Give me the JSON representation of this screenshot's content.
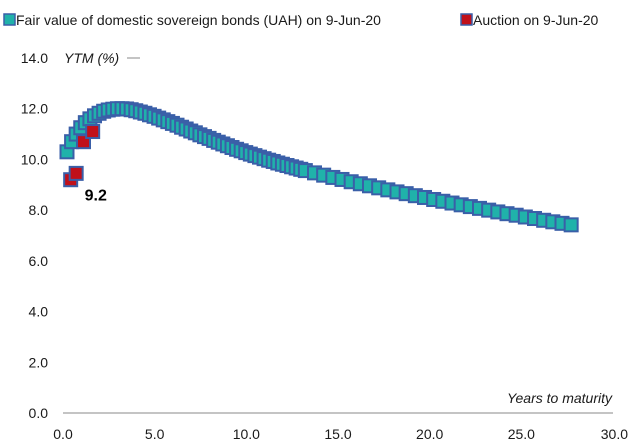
{
  "chart_data": {
    "type": "scatter",
    "title": "",
    "xlabel": "Years to maturity",
    "ylabel": "YTM (%)",
    "xlim": [
      0,
      30
    ],
    "ylim": [
      0,
      14
    ],
    "xticks": [
      "0.0",
      "5.0",
      "10.0",
      "15.0",
      "20.0",
      "25.0",
      "30.0"
    ],
    "yticks": [
      "0.0",
      "2.0",
      "4.0",
      "6.0",
      "8.0",
      "10.0",
      "12.0",
      "14.0"
    ],
    "grid": false,
    "legend_position": "top",
    "series": [
      {
        "name": "Fair value of domestic sovereign bonds (UAH) on 9-Jun-20",
        "color": "#20b2aa",
        "border_color": "#3a5fa8",
        "marker": "square",
        "points": [
          [
            0.0,
            10.3
          ],
          [
            0.25,
            10.7
          ],
          [
            0.5,
            11.0
          ],
          [
            0.75,
            11.25
          ],
          [
            1.0,
            11.45
          ],
          [
            1.25,
            11.6
          ],
          [
            1.5,
            11.72
          ],
          [
            1.75,
            11.82
          ],
          [
            2.0,
            11.9
          ],
          [
            2.25,
            11.95
          ],
          [
            2.5,
            11.98
          ],
          [
            2.75,
            12.0
          ],
          [
            3.0,
            12.0
          ],
          [
            3.25,
            11.99
          ],
          [
            3.5,
            11.96
          ],
          [
            3.75,
            11.92
          ],
          [
            4.0,
            11.87
          ],
          [
            4.25,
            11.82
          ],
          [
            4.5,
            11.76
          ],
          [
            4.75,
            11.7
          ],
          [
            5.0,
            11.63
          ],
          [
            5.25,
            11.56
          ],
          [
            5.5,
            11.49
          ],
          [
            5.75,
            11.42
          ],
          [
            6.0,
            11.35
          ],
          [
            6.25,
            11.27
          ],
          [
            6.5,
            11.2
          ],
          [
            6.75,
            11.12
          ],
          [
            7.0,
            11.05
          ],
          [
            7.25,
            10.97
          ],
          [
            7.5,
            10.9
          ],
          [
            7.75,
            10.83
          ],
          [
            8.0,
            10.75
          ],
          [
            8.25,
            10.68
          ],
          [
            8.5,
            10.61
          ],
          [
            8.75,
            10.54
          ],
          [
            9.0,
            10.47
          ],
          [
            9.25,
            10.4
          ],
          [
            9.5,
            10.34
          ],
          [
            9.75,
            10.27
          ],
          [
            10.0,
            10.21
          ],
          [
            10.25,
            10.15
          ],
          [
            10.5,
            10.09
          ],
          [
            10.75,
            10.03
          ],
          [
            11.0,
            9.97
          ],
          [
            11.25,
            9.92
          ],
          [
            11.5,
            9.86
          ],
          [
            11.75,
            9.81
          ],
          [
            12.0,
            9.76
          ],
          [
            12.25,
            9.71
          ],
          [
            12.5,
            9.66
          ],
          [
            12.75,
            9.61
          ],
          [
            13.0,
            9.56
          ],
          [
            13.5,
            9.47
          ],
          [
            14.0,
            9.38
          ],
          [
            14.5,
            9.29
          ],
          [
            15.0,
            9.21
          ],
          [
            15.5,
            9.12
          ],
          [
            16.0,
            9.04
          ],
          [
            16.5,
            8.96
          ],
          [
            17.0,
            8.88
          ],
          [
            17.5,
            8.8
          ],
          [
            18.0,
            8.72
          ],
          [
            18.5,
            8.65
          ],
          [
            19.0,
            8.57
          ],
          [
            19.5,
            8.5
          ],
          [
            20.0,
            8.42
          ],
          [
            20.5,
            8.35
          ],
          [
            21.0,
            8.28
          ],
          [
            21.5,
            8.21
          ],
          [
            22.0,
            8.14
          ],
          [
            22.5,
            8.07
          ],
          [
            23.0,
            8.0
          ],
          [
            23.5,
            7.93
          ],
          [
            24.0,
            7.86
          ],
          [
            24.5,
            7.8
          ],
          [
            25.0,
            7.73
          ],
          [
            25.5,
            7.67
          ],
          [
            26.0,
            7.6
          ],
          [
            26.5,
            7.54
          ],
          [
            27.0,
            7.48
          ],
          [
            27.5,
            7.42
          ]
        ]
      },
      {
        "name": "Auction on 9-Jun-20",
        "color": "#c0101a",
        "border_color": "#3a5fa8",
        "marker": "square",
        "points": [
          [
            0.2,
            9.2
          ],
          [
            0.5,
            9.45
          ],
          [
            0.9,
            10.7
          ],
          [
            1.4,
            11.1
          ]
        ]
      }
    ],
    "annotations": [
      {
        "text": "9.2",
        "x": 0.2,
        "y": 9.2
      }
    ]
  }
}
